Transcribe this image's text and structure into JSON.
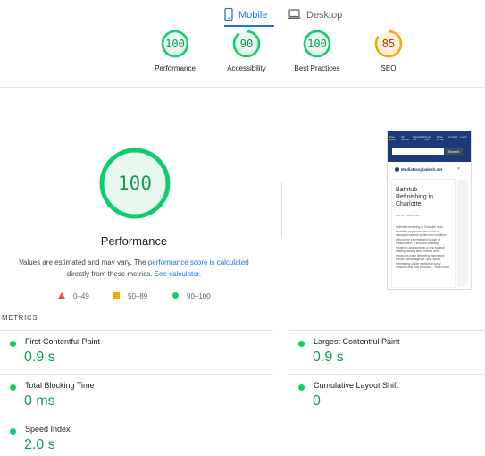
{
  "tabs": [
    {
      "label": "Mobile",
      "icon": "smartphone-icon",
      "active": true
    },
    {
      "label": "Desktop",
      "icon": "laptop-icon",
      "active": false
    }
  ],
  "summary_scores": [
    {
      "label": "Performance",
      "score": "100",
      "value": 100,
      "color": "#0cce6b"
    },
    {
      "label": "Accessibility",
      "score": "90",
      "value": 90,
      "color": "#0cce6b"
    },
    {
      "label": "Best Practices",
      "score": "100",
      "value": 100,
      "color": "#0cce6b"
    },
    {
      "label": "SEO",
      "score": "85",
      "value": 85,
      "color": "#ffa400"
    }
  ],
  "main": {
    "score": "100",
    "value": 100,
    "title": "Performance",
    "desc_before": "Values are estimated and may vary. The ",
    "desc_link": "performance score is calculated",
    "desc_after": " directly from these metrics. ",
    "calc_link": "See calculator."
  },
  "legend": [
    {
      "range": "0–49",
      "shape": "triangle",
      "color": "#ff4e42"
    },
    {
      "range": "50–89",
      "shape": "square",
      "color": "#ffa400"
    },
    {
      "range": "90–100",
      "shape": "circle",
      "color": "#0cce6b"
    }
  ],
  "thumbnail": {
    "nav_items": [
      "Free Tools",
      "All Modes",
      "Classified Ad",
      "Email Ads",
      "Write for us",
      "Contact",
      "Login"
    ],
    "search_btn": "Search",
    "brand": "MediaBangladesh.net",
    "article_title": "Bathtub Refinishing in Charlotte",
    "article_date": "Dec 11, 2024 by ali t",
    "article_body": "Bathtub refinishing in Charlotte is an excellent way to restore a worn or damaged bathtub to like-new condition without the expense and hassle of replacement. It involves cleaning, repairing, and applying a new surface coating, saving time, money, and resources while delivering impressive results. Advantages of Spot-Spray Refinishing Unlike traditional spray methods that may produce ... Read more"
  },
  "metrics_heading": "METRICS",
  "metrics": [
    {
      "name": "First Contentful Paint",
      "value": "0.9 s"
    },
    {
      "name": "Largest Contentful Paint",
      "value": "0.9 s"
    },
    {
      "name": "Total Blocking Time",
      "value": "0 ms"
    },
    {
      "name": "Cumulative Layout Shift",
      "value": "0"
    },
    {
      "name": "Speed Index",
      "value": "2.0 s"
    }
  ],
  "colors": {
    "pass": "#0cce6b",
    "pass_text": "#0d9d50",
    "average": "#ffa400",
    "fail": "#ff4e42",
    "accent": "#1a73e8"
  }
}
